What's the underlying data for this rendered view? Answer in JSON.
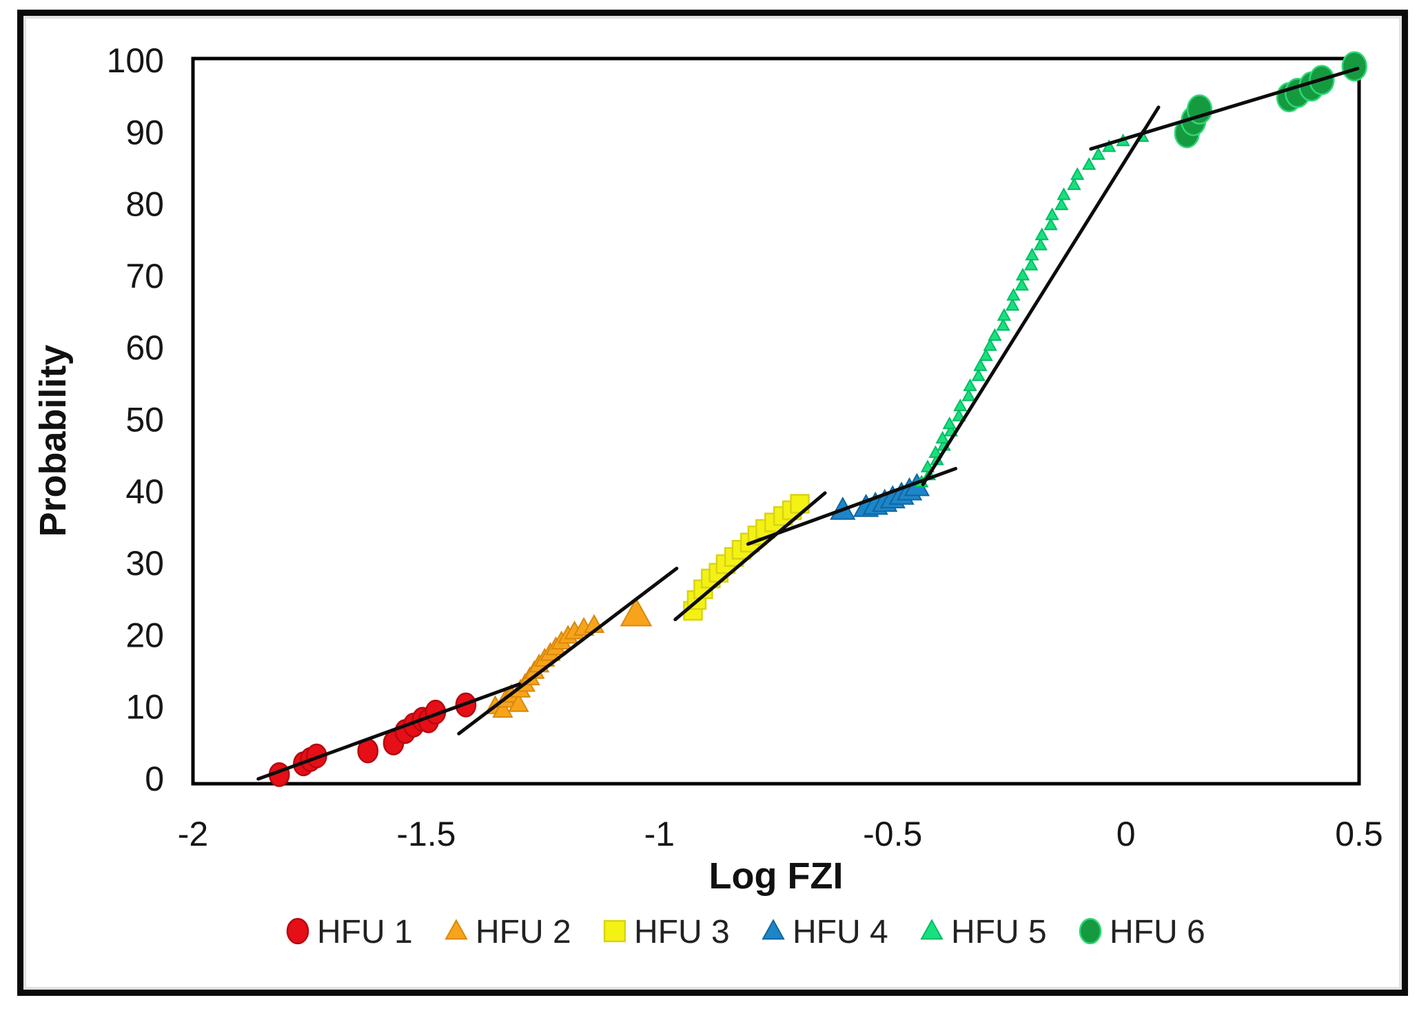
{
  "figure": {
    "background": "#ffffff",
    "outer_border_color": "#0a0a0a",
    "inner_edge_color": "#e2e2e2",
    "plot_border_color": "#000000",
    "trendline_color": "#0c0c0c"
  },
  "chart_data": {
    "type": "scatter",
    "title": "",
    "xlabel": "Log FZI",
    "ylabel": "Probability",
    "xlim": [
      -2,
      0.5
    ],
    "ylim": [
      0,
      100
    ],
    "grid": false,
    "legend_position": "bottom",
    "x_tick_values": [
      -2,
      -1.5,
      -1,
      -0.5,
      0,
      0.5
    ],
    "x_tick_labels": [
      "-2",
      "-1.5",
      "-1",
      "-0.5",
      "0",
      "0.5"
    ],
    "y_tick_values": [
      0,
      10,
      20,
      30,
      40,
      50,
      60,
      70,
      80,
      90,
      100
    ],
    "series": [
      {
        "name": "HFU 1",
        "marker": "circle",
        "color": "#e60e17",
        "edge": "#b50910",
        "size": 30,
        "points": [
          [
            -1.815,
            0.6
          ],
          [
            -1.763,
            2.1
          ],
          [
            -1.748,
            2.7
          ],
          [
            -1.735,
            3.2
          ],
          [
            -1.625,
            3.9
          ],
          [
            -1.57,
            5.0
          ],
          [
            -1.545,
            6.6
          ],
          [
            -1.527,
            7.5
          ],
          [
            -1.508,
            8.3
          ],
          [
            -1.495,
            8.1
          ],
          [
            -1.48,
            9.3
          ],
          [
            -1.415,
            10.3
          ]
        ],
        "trendline": [
          [
            -1.86,
            0.0
          ],
          [
            -1.3,
            13.2
          ]
        ]
      },
      {
        "name": "HFU 2",
        "marker": "triangle",
        "color": "#f7a41c",
        "edge": "#d9880b",
        "size": 27,
        "points": [
          [
            -1.352,
            10.1
          ],
          [
            -1.336,
            9.6
          ],
          [
            -1.33,
            11.0
          ],
          [
            -1.318,
            11.7
          ],
          [
            -1.302,
            10.4
          ],
          [
            -1.298,
            12.4
          ],
          [
            -1.288,
            13.2
          ],
          [
            -1.278,
            14.1
          ],
          [
            -1.268,
            15.0
          ],
          [
            -1.258,
            15.9
          ],
          [
            -1.246,
            16.7
          ],
          [
            -1.234,
            17.5
          ],
          [
            -1.222,
            18.3
          ],
          [
            -1.21,
            19.1
          ],
          [
            -1.196,
            19.9
          ],
          [
            -1.182,
            20.5
          ],
          [
            -1.162,
            21.0
          ],
          [
            -1.14,
            21.4
          ],
          [
            -1.05,
            22.9,
            1.6
          ]
        ],
        "trendline": [
          [
            -1.43,
            6.3
          ],
          [
            -0.963,
            29.3
          ]
        ]
      },
      {
        "name": "HFU 3",
        "marker": "square",
        "color": "#f4f115",
        "edge": "#d9d312",
        "size": 28,
        "points": [
          [
            -0.928,
            23.4
          ],
          [
            -0.92,
            24.9
          ],
          [
            -0.906,
            26.4
          ],
          [
            -0.89,
            27.9
          ],
          [
            -0.873,
            28.7
          ],
          [
            -0.858,
            29.9
          ],
          [
            -0.84,
            30.9
          ],
          [
            -0.824,
            31.9
          ],
          [
            -0.806,
            32.9
          ],
          [
            -0.79,
            33.9
          ],
          [
            -0.773,
            34.8
          ],
          [
            -0.754,
            35.7
          ],
          [
            -0.735,
            36.6
          ],
          [
            -0.716,
            37.4
          ],
          [
            -0.699,
            38.3
          ]
        ],
        "trendline": [
          [
            -0.966,
            22.2
          ],
          [
            -0.645,
            39.8
          ]
        ]
      },
      {
        "name": "HFU 4",
        "marker": "triangle",
        "color": "#1d86c8",
        "edge": "#0e66a0",
        "size": 34,
        "points": [
          [
            -0.607,
            37.4
          ],
          [
            -0.557,
            37.8
          ],
          [
            -0.537,
            38.1
          ],
          [
            -0.517,
            38.5
          ],
          [
            -0.5,
            39.0
          ],
          [
            -0.481,
            39.5
          ],
          [
            -0.464,
            40.1
          ],
          [
            -0.448,
            40.7
          ]
        ],
        "trendline": [
          [
            -0.81,
            32.7
          ],
          [
            -0.365,
            43.2
          ]
        ]
      },
      {
        "name": "HFU 5",
        "marker": "triangle",
        "color": "#19e07e",
        "edge": "#00bd64",
        "size": 17,
        "points": [
          [
            -0.438,
            41.3
          ],
          [
            -0.422,
            42.3
          ],
          [
            -0.425,
            43.4
          ],
          [
            -0.405,
            44.4
          ],
          [
            -0.408,
            45.4
          ],
          [
            -0.39,
            46.4
          ],
          [
            -0.393,
            47.4
          ],
          [
            -0.375,
            48.4
          ],
          [
            -0.378,
            49.4
          ],
          [
            -0.358,
            50.5
          ],
          [
            -0.355,
            51.9
          ],
          [
            -0.337,
            53.3
          ],
          [
            -0.334,
            54.7
          ],
          [
            -0.316,
            56.1
          ],
          [
            -0.312,
            57.5
          ],
          [
            -0.3,
            58.9
          ],
          [
            -0.291,
            60.3
          ],
          [
            -0.281,
            61.7
          ],
          [
            -0.263,
            63.1
          ],
          [
            -0.261,
            64.5
          ],
          [
            -0.243,
            65.9
          ],
          [
            -0.241,
            67.3
          ],
          [
            -0.223,
            68.7
          ],
          [
            -0.221,
            70.1
          ],
          [
            -0.203,
            71.5
          ],
          [
            -0.201,
            72.9
          ],
          [
            -0.183,
            74.3
          ],
          [
            -0.18,
            75.7
          ],
          [
            -0.161,
            77.1
          ],
          [
            -0.158,
            78.5
          ],
          [
            -0.138,
            79.9
          ],
          [
            -0.133,
            81.3
          ],
          [
            -0.111,
            82.7
          ],
          [
            -0.104,
            84.1
          ],
          [
            -0.079,
            85.5
          ],
          [
            -0.059,
            86.9
          ],
          [
            -0.036,
            88.0
          ],
          [
            -0.006,
            88.8
          ],
          [
            0.035,
            89.4
          ]
        ],
        "trendline": [
          [
            -0.435,
            41.0
          ],
          [
            0.07,
            93.5
          ]
        ]
      },
      {
        "name": "HFU 6",
        "marker": "circle",
        "color": "#169a40",
        "edge": "#2fd877",
        "size": 37,
        "points": [
          [
            0.131,
            89.9
          ],
          [
            0.145,
            91.6
          ],
          [
            0.158,
            93.2
          ],
          [
            0.35,
            94.9
          ],
          [
            0.368,
            95.5
          ],
          [
            0.398,
            96.4
          ],
          [
            0.42,
            97.3
          ],
          [
            0.49,
            99.2
          ]
        ],
        "trendline": [
          [
            -0.075,
            87.7
          ],
          [
            0.497,
            98.9
          ]
        ]
      }
    ]
  }
}
